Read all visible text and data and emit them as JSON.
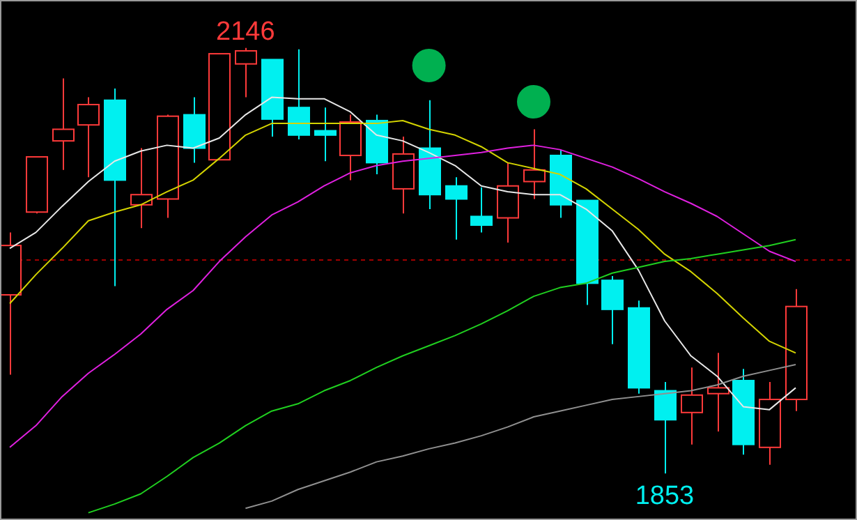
{
  "chart_data": {
    "type": "candlestick",
    "categories": [
      null,
      null,
      null,
      null,
      null,
      null,
      null,
      null,
      null,
      null,
      null,
      null,
      null,
      null,
      null,
      null,
      null,
      null,
      null,
      null,
      null,
      null,
      null,
      null,
      null,
      null,
      null,
      null,
      null,
      null,
      null
    ],
    "ohlc": [
      [
        1976,
        2019,
        1921,
        2010
      ],
      [
        2033,
        2071,
        2032,
        2071
      ],
      [
        2082,
        2125,
        2062,
        2090
      ],
      [
        2093,
        2112,
        2057,
        2107
      ],
      [
        2110,
        2118,
        1982,
        2055
      ],
      [
        2038,
        2077,
        2022,
        2045
      ],
      [
        2042,
        2100,
        2029,
        2099
      ],
      [
        2100,
        2112,
        2067,
        2077
      ],
      [
        2069,
        2142,
        2069,
        2142
      ],
      [
        2135,
        2146,
        2112,
        2144
      ],
      [
        2138,
        2138,
        2085,
        2097
      ],
      [
        2105,
        2145,
        2083,
        2086
      ],
      [
        2089,
        2105,
        2068,
        2086
      ],
      [
        2072,
        2100,
        2055,
        2095
      ],
      [
        2096,
        2100,
        2059,
        2067
      ],
      [
        2049,
        2085,
        2032,
        2073
      ],
      [
        2077,
        2110,
        2035,
        2045
      ],
      [
        2051,
        2057,
        2014,
        2042
      ],
      [
        2030,
        2050,
        2019,
        2024
      ],
      [
        2029,
        2067,
        2012,
        2051
      ],
      [
        2054,
        2090,
        2042,
        2062
      ],
      [
        2072,
        2076,
        2029,
        2038
      ],
      [
        2041,
        2041,
        1969,
        1984
      ],
      [
        1986,
        1989,
        1942,
        1966
      ],
      [
        1967,
        1972,
        1908,
        1912
      ],
      [
        1910,
        1916,
        1853,
        1890
      ],
      [
        1895,
        1926,
        1873,
        1907
      ],
      [
        1908,
        1936,
        1882,
        1912
      ],
      [
        1917,
        1925,
        1866,
        1873
      ],
      [
        1871,
        1916,
        1859,
        1904
      ],
      [
        1904,
        1980,
        1896,
        1968
      ]
    ],
    "colors": [
      "#ff3a3a",
      "#ff3a3a",
      "#ff3a3a",
      "#ff3a3a",
      "#00f0f0",
      "#ff3a3a",
      "#ff3a3a",
      "#00f0f0",
      "#ff3a3a",
      "#ff3a3a",
      "#00f0f0",
      "#00f0f0",
      "#00f0f0",
      "#ff3a3a",
      "#00f0f0",
      "#ff3a3a",
      "#00f0f0",
      "#00f0f0",
      "#00f0f0",
      "#ff3a3a",
      "#ff3a3a",
      "#00f0f0",
      "#00f0f0",
      "#00f0f0",
      "#00f0f0",
      "#00f0f0",
      "#ff3a3a",
      "#ff3a3a",
      "#00f0f0",
      "#ff3a3a",
      "#ff3a3a"
    ],
    "series": [
      {
        "type": "line",
        "color": "#e8e8e8",
        "values": [
          2008,
          2019,
          2037,
          2054,
          2068,
          2075,
          2079,
          2077,
          2084,
          2100,
          2112,
          2111,
          2111,
          2102,
          2086,
          2082,
          2074,
          2065,
          2051,
          2047,
          2045,
          2045,
          2035,
          2020,
          1993,
          1958,
          1934,
          1920,
          1899,
          1897,
          1912
        ]
      },
      {
        "type": "line",
        "color": "#d4d400",
        "values": [
          1970,
          1990,
          2008,
          2027,
          2033,
          2038,
          2047,
          2055,
          2070,
          2086,
          2094,
          2094,
          2094,
          2094,
          2094,
          2096,
          2090,
          2086,
          2078,
          2067,
          2063,
          2059,
          2049,
          2035,
          2021,
          2004,
          1992,
          1977,
          1960,
          1944,
          1936
        ]
      },
      {
        "type": "line",
        "color": "#e020e0",
        "values": [
          1871,
          1886,
          1906,
          1922,
          1935,
          1949,
          1966,
          1979,
          1999,
          2016,
          2031,
          2040,
          2051,
          2060,
          2065,
          2068,
          2070,
          2072,
          2074,
          2077,
          2079,
          2076,
          2070,
          2064,
          2056,
          2047,
          2039,
          2030,
          2018,
          2006,
          1999
        ]
      },
      {
        "type": "line",
        "color": "#20d020",
        "values": [
          null,
          null,
          null,
          1826,
          1832,
          1839,
          1851,
          1864,
          1874,
          1886,
          1896,
          1901,
          1910,
          1917,
          1926,
          1934,
          1941,
          1948,
          1956,
          1965,
          1975,
          1981,
          1984,
          1991,
          1995,
          1999,
          2001,
          2004,
          2007,
          2010,
          2014
        ]
      },
      {
        "type": "line",
        "color": "#909090",
        "values": [
          null,
          null,
          null,
          null,
          null,
          null,
          null,
          null,
          null,
          1829,
          1834,
          1842,
          1848,
          1854,
          1861,
          1865,
          1870,
          1874,
          1879,
          1885,
          1892,
          1896,
          1900,
          1904,
          1906,
          1908,
          1910,
          1914,
          1920,
          1924,
          1928
        ]
      }
    ],
    "ylim": [
      1821,
      2179
    ],
    "marker": "none",
    "line_style": "solid",
    "ref_lines": [
      {
        "axis": "y",
        "value": 2000,
        "color": "#a00000",
        "line_style": "dashed"
      }
    ],
    "annotations": [
      {
        "text": "2146",
        "y": 2146
      },
      {
        "text": "1853",
        "y": 1853
      }
    ]
  }
}
